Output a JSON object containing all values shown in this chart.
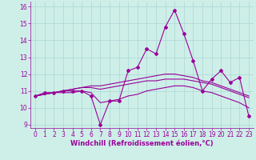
{
  "xlabel": "Windchill (Refroidissement éolien,°C)",
  "background_color": "#ceeee8",
  "line_color": "#990099",
  "ylim": [
    8.8,
    16.3
  ],
  "xlim": [
    -0.5,
    23.5
  ],
  "yticks": [
    9,
    10,
    11,
    12,
    13,
    14,
    15,
    16
  ],
  "xticks": [
    0,
    1,
    2,
    3,
    4,
    5,
    6,
    7,
    8,
    9,
    10,
    11,
    12,
    13,
    14,
    15,
    16,
    17,
    18,
    19,
    20,
    21,
    22,
    23
  ],
  "series": [
    [
      10.7,
      10.9,
      10.9,
      11.0,
      11.0,
      11.0,
      10.7,
      9.0,
      10.4,
      10.4,
      12.2,
      12.4,
      13.5,
      13.2,
      14.8,
      15.8,
      14.4,
      12.8,
      11.0,
      11.7,
      12.2,
      11.5,
      11.8,
      9.5
    ],
    [
      10.7,
      10.8,
      10.9,
      10.9,
      10.9,
      11.0,
      10.9,
      10.3,
      10.4,
      10.5,
      10.7,
      10.8,
      11.0,
      11.1,
      11.2,
      11.3,
      11.3,
      11.2,
      11.0,
      10.9,
      10.7,
      10.5,
      10.3,
      10.0
    ],
    [
      10.7,
      10.8,
      10.9,
      11.0,
      11.1,
      11.2,
      11.2,
      11.1,
      11.2,
      11.3,
      11.4,
      11.5,
      11.6,
      11.6,
      11.7,
      11.7,
      11.7,
      11.6,
      11.5,
      11.4,
      11.2,
      11.0,
      10.8,
      10.6
    ],
    [
      10.7,
      10.8,
      10.9,
      11.0,
      11.1,
      11.2,
      11.3,
      11.3,
      11.4,
      11.5,
      11.6,
      11.7,
      11.8,
      11.9,
      12.0,
      12.0,
      11.9,
      11.8,
      11.6,
      11.5,
      11.3,
      11.1,
      10.9,
      10.7
    ]
  ],
  "grid_color": "#aad8d4",
  "tick_fontsize": 5.5,
  "label_fontsize": 6.0
}
